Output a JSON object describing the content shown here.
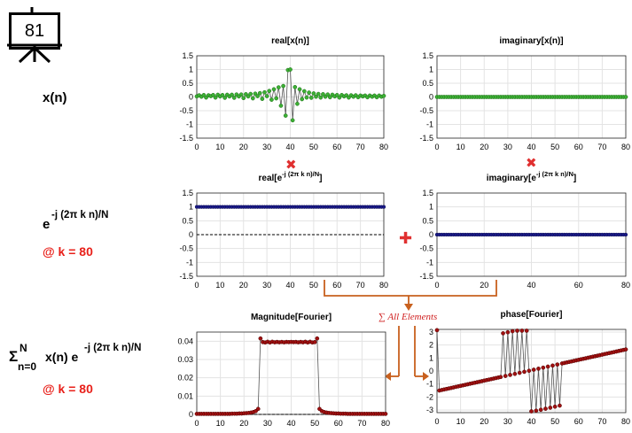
{
  "badge": {
    "number": "81"
  },
  "row_labels": {
    "xn": "x(n)",
    "kernel_base": "e",
    "kernel_exp": "-j (2π k n)/N",
    "k1": "@ k = 80",
    "sum_sym": "Σ",
    "sum_sup": "N",
    "sum_sub": "n=0",
    "sum_mid": "x(n) e",
    "sum_exp": "-j (2π k n)/N",
    "k2": "@ k = 80"
  },
  "operators": {
    "times1": "✖",
    "times2": "✖",
    "plus": "✚"
  },
  "annotation": {
    "sum_text": "∑ All Elements"
  },
  "colors": {
    "green": "#2ca02c",
    "navy": "#1a1a7a",
    "darkred": "#8b0000",
    "orange": "#c8601e",
    "red_text": "#e8201a",
    "grid": "#e6e6e6"
  },
  "chart_data": [
    {
      "id": "real_x",
      "type": "line",
      "title": "real[x(n)]",
      "xlim": [
        0,
        80
      ],
      "ylim": [
        -1.5,
        1.5
      ],
      "xticks": [
        "0",
        "10",
        "20",
        "30",
        "40",
        "50",
        "60",
        "70",
        "80"
      ],
      "yticks": [
        "1.5",
        "1",
        "0.5",
        "0",
        "-0.5",
        "-1",
        "-1.5"
      ],
      "marker": "green",
      "x": [
        0,
        1,
        2,
        3,
        4,
        5,
        6,
        7,
        8,
        9,
        10,
        11,
        12,
        13,
        14,
        15,
        16,
        17,
        18,
        19,
        20,
        21,
        22,
        23,
        24,
        25,
        26,
        27,
        28,
        29,
        30,
        31,
        32,
        33,
        34,
        35,
        36,
        37,
        38,
        39,
        40,
        41,
        42,
        43,
        44,
        45,
        46,
        47,
        48,
        49,
        50,
        51,
        52,
        53,
        54,
        55,
        56,
        57,
        58,
        59,
        60,
        61,
        62,
        63,
        64,
        65,
        66,
        67,
        68,
        69,
        70,
        71,
        72,
        73,
        74,
        75,
        76,
        77,
        78,
        79,
        80
      ],
      "values": [
        0.02,
        0.06,
        0.01,
        0.07,
        -0.02,
        0.06,
        0.03,
        0.07,
        -0.02,
        0.08,
        0.02,
        0.07,
        -0.03,
        0.08,
        0.02,
        0.08,
        -0.03,
        0.09,
        0.02,
        0.09,
        -0.04,
        0.1,
        0.02,
        0.11,
        -0.05,
        0.12,
        0.03,
        0.14,
        -0.07,
        0.17,
        0.03,
        0.22,
        -0.1,
        0.28,
        -0.05,
        0.35,
        -0.32,
        0.4,
        -0.68,
        0.98,
        1.0,
        -0.85,
        0.36,
        -0.25,
        0.28,
        -0.08,
        0.21,
        -0.02,
        0.16,
        -0.03,
        0.13,
        0.01,
        0.11,
        -0.02,
        0.1,
        0.01,
        0.09,
        -0.01,
        0.08,
        0.02,
        0.07,
        -0.02,
        0.07,
        0.02,
        0.06,
        -0.02,
        0.06,
        0.01,
        0.06,
        -0.01,
        0.05,
        0.02,
        0.05,
        -0.01,
        0.05,
        0.01,
        0.05,
        -0.01,
        0.05,
        0.01,
        0.04
      ]
    },
    {
      "id": "imag_x",
      "type": "line",
      "title": "imaginary[x(n)]",
      "xlim": [
        0,
        80
      ],
      "ylim": [
        -1.5,
        1.5
      ],
      "xticks": [
        "0",
        "10",
        "20",
        "30",
        "40",
        "50",
        "60",
        "70",
        "80"
      ],
      "yticks": [
        "1.5",
        "1",
        "0.5",
        "0",
        "-0.5",
        "-1",
        "-1.5"
      ],
      "marker": "green",
      "x": [
        0,
        1,
        2,
        3,
        4,
        5,
        6,
        7,
        8,
        9,
        10,
        11,
        12,
        13,
        14,
        15,
        16,
        17,
        18,
        19,
        20,
        21,
        22,
        23,
        24,
        25,
        26,
        27,
        28,
        29,
        30,
        31,
        32,
        33,
        34,
        35,
        36,
        37,
        38,
        39,
        40,
        41,
        42,
        43,
        44,
        45,
        46,
        47,
        48,
        49,
        50,
        51,
        52,
        53,
        54,
        55,
        56,
        57,
        58,
        59,
        60,
        61,
        62,
        63,
        64,
        65,
        66,
        67,
        68,
        69,
        70,
        71,
        72,
        73,
        74,
        75,
        76,
        77,
        78,
        79,
        80
      ],
      "values": [
        0,
        0,
        0,
        0,
        0,
        0,
        0,
        0,
        0,
        0,
        0,
        0,
        0,
        0,
        0,
        0,
        0,
        0,
        0,
        0,
        0,
        0,
        0,
        0,
        0,
        0,
        0,
        0,
        0,
        0,
        0,
        0,
        0,
        0,
        0,
        0,
        0,
        0,
        0,
        0,
        0,
        0,
        0,
        0,
        0,
        0,
        0,
        0,
        0,
        0,
        0,
        0,
        0,
        0,
        0,
        0,
        0,
        0,
        0,
        0,
        0,
        0,
        0,
        0,
        0,
        0,
        0,
        0,
        0,
        0,
        0,
        0,
        0,
        0,
        0,
        0,
        0,
        0,
        0,
        0,
        0
      ]
    },
    {
      "id": "real_e",
      "type": "line",
      "title": "real[e",
      "title_exp": "-j (2π k n)/N",
      "title_end": "]",
      "xlim": [
        0,
        80
      ],
      "ylim": [
        -1.5,
        1.5
      ],
      "xticks": [
        "0",
        "10",
        "20",
        "30",
        "40",
        "50",
        "60",
        "70",
        "80"
      ],
      "yticks": [
        "1.5",
        "1",
        "0.5",
        "0",
        "-0.5",
        "-1",
        "-1.5"
      ],
      "marker": "navy",
      "x": [
        0,
        1,
        2,
        3,
        4,
        5,
        6,
        7,
        8,
        9,
        10,
        11,
        12,
        13,
        14,
        15,
        16,
        17,
        18,
        19,
        20,
        21,
        22,
        23,
        24,
        25,
        26,
        27,
        28,
        29,
        30,
        31,
        32,
        33,
        34,
        35,
        36,
        37,
        38,
        39,
        40,
        41,
        42,
        43,
        44,
        45,
        46,
        47,
        48,
        49,
        50,
        51,
        52,
        53,
        54,
        55,
        56,
        57,
        58,
        59,
        60,
        61,
        62,
        63,
        64,
        65,
        66,
        67,
        68,
        69,
        70,
        71,
        72,
        73,
        74,
        75,
        76,
        77,
        78,
        79,
        80
      ],
      "values": [
        1,
        1,
        1,
        1,
        1,
        1,
        1,
        1,
        1,
        1,
        1,
        1,
        1,
        1,
        1,
        1,
        1,
        1,
        1,
        1,
        1,
        1,
        1,
        1,
        1,
        1,
        1,
        1,
        1,
        1,
        1,
        1,
        1,
        1,
        1,
        1,
        1,
        1,
        1,
        1,
        1,
        1,
        1,
        1,
        1,
        1,
        1,
        1,
        1,
        1,
        1,
        1,
        1,
        1,
        1,
        1,
        1,
        1,
        1,
        1,
        1,
        1,
        1,
        1,
        1,
        1,
        1,
        1,
        1,
        1,
        1,
        1,
        1,
        1,
        1,
        1,
        1,
        1,
        1,
        1,
        1
      ],
      "zero_line": true
    },
    {
      "id": "imag_e",
      "type": "line",
      "title": "imaginary[e",
      "title_exp": "-j (2π k n)/N",
      "title_end": "]",
      "xlim": [
        0,
        80
      ],
      "ylim": [
        -1.5,
        1.5
      ],
      "xticks": [
        "0",
        "20",
        "40",
        "60",
        "80"
      ],
      "yticks": [
        "1.5",
        "1",
        "0.5",
        "0",
        "-0.5",
        "-1",
        "-1.5"
      ],
      "marker": "navy",
      "x": [
        0,
        1,
        2,
        3,
        4,
        5,
        6,
        7,
        8,
        9,
        10,
        11,
        12,
        13,
        14,
        15,
        16,
        17,
        18,
        19,
        20,
        21,
        22,
        23,
        24,
        25,
        26,
        27,
        28,
        29,
        30,
        31,
        32,
        33,
        34,
        35,
        36,
        37,
        38,
        39,
        40,
        41,
        42,
        43,
        44,
        45,
        46,
        47,
        48,
        49,
        50,
        51,
        52,
        53,
        54,
        55,
        56,
        57,
        58,
        59,
        60,
        61,
        62,
        63,
        64,
        65,
        66,
        67,
        68,
        69,
        70,
        71,
        72,
        73,
        74,
        75,
        76,
        77,
        78,
        79,
        80
      ],
      "values": [
        0,
        0,
        0,
        0,
        0,
        0,
        0,
        0,
        0,
        0,
        0,
        0,
        0,
        0,
        0,
        0,
        0,
        0,
        0,
        0,
        0,
        0,
        0,
        0,
        0,
        0,
        0,
        0,
        0,
        0,
        0,
        0,
        0,
        0,
        0,
        0,
        0,
        0,
        0,
        0,
        0,
        0,
        0,
        0,
        0,
        0,
        0,
        0,
        0,
        0,
        0,
        0,
        0,
        0,
        0,
        0,
        0,
        0,
        0,
        0,
        0,
        0,
        0,
        0,
        0,
        0,
        0,
        0,
        0,
        0,
        0,
        0,
        0,
        0,
        0,
        0,
        0,
        0,
        0,
        0,
        0
      ],
      "zero_line": true
    },
    {
      "id": "magnitude",
      "type": "line",
      "title": "Magnitude[Fourier]",
      "xlim": [
        0,
        80
      ],
      "ylim": [
        0,
        0.045
      ],
      "xticks": [
        "0",
        "10",
        "20",
        "30",
        "40",
        "50",
        "60",
        "70",
        "80"
      ],
      "yticks": [
        "0.04",
        "0.03",
        "0.02",
        "0.01",
        "0"
      ],
      "ytick_values": [
        0.04,
        0.03,
        0.02,
        0.01,
        0
      ],
      "marker": "darkred",
      "x": [
        0,
        1,
        2,
        3,
        4,
        5,
        6,
        7,
        8,
        9,
        10,
        11,
        12,
        13,
        14,
        15,
        16,
        17,
        18,
        19,
        20,
        21,
        22,
        23,
        24,
        25,
        26,
        27,
        28,
        29,
        30,
        31,
        32,
        33,
        34,
        35,
        36,
        37,
        38,
        39,
        40,
        41,
        42,
        43,
        44,
        45,
        46,
        47,
        48,
        49,
        50,
        51,
        52,
        53,
        54,
        55,
        56,
        57,
        58,
        59,
        60,
        61,
        62,
        63,
        64,
        65,
        66,
        67,
        68,
        69,
        70,
        71,
        72,
        73,
        74,
        75,
        76,
        77,
        78,
        79,
        80
      ],
      "values": [
        0.0003,
        0.0003,
        0.0003,
        0.0003,
        0.0003,
        0.0003,
        0.0003,
        0.0003,
        0.0003,
        0.0003,
        0.0003,
        0.0003,
        0.0003,
        0.0003,
        0.0003,
        0.0004,
        0.0004,
        0.0004,
        0.0005,
        0.0005,
        0.0006,
        0.0007,
        0.0008,
        0.001,
        0.0013,
        0.0018,
        0.003,
        0.0415,
        0.0395,
        0.0393,
        0.0397,
        0.0393,
        0.0397,
        0.0394,
        0.0396,
        0.0394,
        0.0396,
        0.0394,
        0.0396,
        0.0395,
        0.0396,
        0.0395,
        0.0396,
        0.0394,
        0.0396,
        0.0394,
        0.0397,
        0.0393,
        0.0397,
        0.0393,
        0.0395,
        0.0415,
        0.003,
        0.0018,
        0.0013,
        0.001,
        0.0008,
        0.0007,
        0.0006,
        0.0005,
        0.0005,
        0.0004,
        0.0004,
        0.0004,
        0.0003,
        0.0003,
        0.0003,
        0.0003,
        0.0003,
        0.0003,
        0.0003,
        0.0003,
        0.0003,
        0.0003,
        0.0003,
        0.0003,
        0.0003,
        0.0003,
        0.0003,
        0.0003,
        0.0003
      ],
      "zero_line": true
    },
    {
      "id": "phase",
      "type": "line",
      "title": "phase[Fourier]",
      "xlim": [
        0,
        80
      ],
      "ylim": [
        -3.2,
        3.2
      ],
      "xticks": [
        "0",
        "10",
        "20",
        "30",
        "40",
        "50",
        "60",
        "70",
        "80"
      ],
      "yticks": [
        "3",
        "2",
        "1",
        "0",
        "-1",
        "-2",
        "-3"
      ],
      "ytick_values": [
        3,
        2,
        1,
        0,
        -1,
        -2,
        -3
      ],
      "marker": "darkred",
      "x": [
        0,
        1,
        2,
        3,
        4,
        5,
        6,
        7,
        8,
        9,
        10,
        11,
        12,
        13,
        14,
        15,
        16,
        17,
        18,
        19,
        20,
        21,
        22,
        23,
        24,
        25,
        26,
        27,
        28,
        29,
        30,
        31,
        32,
        33,
        34,
        35,
        36,
        37,
        38,
        39,
        40,
        41,
        42,
        43,
        44,
        45,
        46,
        47,
        48,
        49,
        50,
        51,
        52,
        53,
        54,
        55,
        56,
        57,
        58,
        59,
        60,
        61,
        62,
        63,
        64,
        65,
        66,
        67,
        68,
        69,
        70,
        71,
        72,
        73,
        74,
        75,
        76,
        77,
        78,
        79,
        80
      ],
      "values": [
        3.14,
        -1.5,
        -1.46,
        -1.42,
        -1.38,
        -1.34,
        -1.3,
        -1.26,
        -1.22,
        -1.18,
        -1.14,
        -1.1,
        -1.06,
        -1.02,
        -0.98,
        -0.94,
        -0.9,
        -0.86,
        -0.82,
        -0.78,
        -0.74,
        -0.7,
        -0.66,
        -0.62,
        -0.58,
        -0.54,
        -0.5,
        -0.46,
        2.9,
        -0.38,
        2.98,
        -0.3,
        3.06,
        -0.22,
        3.1,
        -0.14,
        3.1,
        -0.06,
        3.1,
        0.02,
        -3.1,
        0.1,
        -3.05,
        0.18,
        -2.98,
        0.26,
        -2.9,
        0.34,
        -2.82,
        0.42,
        -2.74,
        0.5,
        -2.66,
        0.58,
        0.62,
        0.66,
        0.7,
        0.74,
        0.78,
        0.82,
        0.86,
        0.9,
        0.94,
        0.98,
        1.02,
        1.06,
        1.1,
        1.14,
        1.18,
        1.22,
        1.26,
        1.3,
        1.34,
        1.38,
        1.42,
        1.46,
        1.5,
        1.54,
        1.58,
        1.62,
        1.66
      ]
    }
  ]
}
